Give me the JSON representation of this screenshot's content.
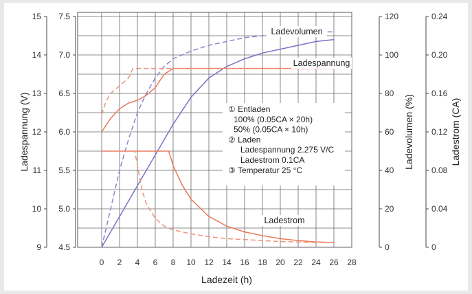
{
  "chart_data": {
    "type": "line",
    "xlabel": "Ladezeit (h)",
    "x_ticks": [
      "0",
      "2",
      "4",
      "6",
      "8",
      "10",
      "12",
      "14",
      "16",
      "18",
      "20",
      "22",
      "24",
      "26",
      "28"
    ],
    "xlim": [
      0,
      28
    ],
    "axes": {
      "left_outer": {
        "label": "Ladespannung (V)",
        "ticks": [
          "9",
          "10",
          "11",
          "12",
          "13",
          "14",
          "15"
        ],
        "range": [
          9,
          15
        ]
      },
      "left_inner": {
        "label": "",
        "ticks": [
          "4.5",
          "5.0",
          "5.5",
          "6.0",
          "6.5",
          "7.0",
          "7.5"
        ],
        "range": [
          4.5,
          7.5
        ]
      },
      "right_inner": {
        "label": "Ladevolumen (%)",
        "ticks": [
          "0",
          "20",
          "40",
          "60",
          "80",
          "100",
          "120"
        ],
        "range": [
          0,
          120
        ]
      },
      "right_outer": {
        "label": "Ladestrom (CA)",
        "ticks": [
          "0",
          "0.04",
          "0.08",
          "0.12",
          "0.16",
          "0.20",
          "0.24"
        ],
        "range": [
          0,
          0.24
        ]
      }
    },
    "grid": true,
    "series": [
      {
        "name": "Ladevolumen",
        "style": "solid",
        "color": "#7a72c6",
        "axis": "right_inner",
        "x": [
          0,
          2,
          4,
          6,
          8,
          10,
          12,
          14,
          16,
          18,
          20,
          22,
          24,
          26
        ],
        "y": [
          0,
          16,
          32,
          48,
          64,
          78,
          88,
          94,
          98,
          101,
          103,
          105,
          107,
          108
        ]
      },
      {
        "name": "Ladevolumen",
        "style": "dashed",
        "color": "#8a84cf",
        "axis": "right_inner",
        "x": [
          0,
          1,
          2,
          3,
          4,
          5,
          6,
          7,
          8,
          10,
          12,
          14,
          16,
          18,
          20,
          22,
          24,
          26
        ],
        "y": [
          0,
          20,
          40,
          56,
          70,
          80,
          88,
          94,
          98,
          102,
          105,
          107,
          109,
          110,
          111,
          111.5,
          112,
          112
        ]
      },
      {
        "name": "Ladespannung",
        "style": "solid",
        "color": "#e8785a",
        "axis": "left_outer",
        "x": [
          0,
          1,
          2,
          3,
          4,
          5,
          6,
          7,
          8,
          10,
          12,
          14,
          16,
          18,
          20,
          22,
          24,
          26
        ],
        "y": [
          12,
          12.35,
          12.6,
          12.75,
          12.82,
          12.95,
          13.15,
          13.5,
          13.65,
          13.65,
          13.65,
          13.65,
          13.65,
          13.65,
          13.65,
          13.65,
          13.65,
          13.65
        ]
      },
      {
        "name": "Ladespannung",
        "style": "dashed",
        "color": "#f0907a",
        "axis": "left_outer",
        "x": [
          0,
          0.5,
          1,
          2,
          3,
          3.5,
          4,
          6,
          8,
          10,
          12,
          14,
          16,
          18,
          20,
          22,
          24,
          26
        ],
        "y": [
          12.45,
          12.8,
          13.0,
          13.2,
          13.4,
          13.65,
          13.65,
          13.65,
          13.65,
          13.65,
          13.65,
          13.65,
          13.65,
          13.65,
          13.65,
          13.65,
          13.65,
          13.65
        ]
      },
      {
        "name": "Ladestrom",
        "style": "solid",
        "color": "#e8785a",
        "axis": "right_outer",
        "x": [
          0,
          2,
          4,
          6,
          7.5,
          8,
          9,
          10,
          12,
          14,
          16,
          18,
          20,
          22,
          24,
          26
        ],
        "y": [
          0.1,
          0.1,
          0.1,
          0.1,
          0.1,
          0.085,
          0.065,
          0.05,
          0.032,
          0.022,
          0.016,
          0.012,
          0.009,
          0.007,
          0.0055,
          0.005
        ]
      },
      {
        "name": "Ladestrom",
        "style": "dashed",
        "color": "#f0907a",
        "axis": "right_outer",
        "x": [
          0,
          2,
          3.7,
          4,
          4.5,
          5,
          6,
          7,
          8,
          10,
          12,
          14,
          16,
          18,
          20,
          22,
          24,
          26
        ],
        "y": [
          0.1,
          0.1,
          0.1,
          0.085,
          0.06,
          0.045,
          0.03,
          0.022,
          0.018,
          0.014,
          0.011,
          0.009,
          0.008,
          0.007,
          0.006,
          0.0055,
          0.005,
          0.005
        ]
      }
    ],
    "curve_labels": {
      "ladevolumen": "Ladevolumen",
      "ladespannung": "Ladespannung",
      "ladestrom": "Ladestrom"
    },
    "annotation": [
      "① Entladen",
      "100% (0.05CA × 20h)",
      "50%  (0.05CA × 10h)",
      "② Laden",
      "Ladespannung 2.275 V/C",
      "Ladestrom      0.1CA",
      "③ Temperatur     25 °C"
    ]
  }
}
